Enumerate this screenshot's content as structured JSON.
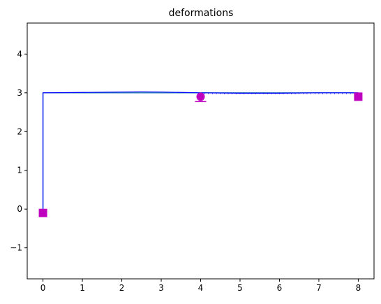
{
  "chart_data": {
    "type": "line",
    "title": "deformations",
    "xlabel": "",
    "ylabel": "",
    "xlim": [
      -0.4,
      8.4
    ],
    "ylim": [
      -1.8,
      4.8
    ],
    "x_ticks": [
      0,
      1,
      2,
      3,
      4,
      5,
      6,
      7,
      8
    ],
    "y_ticks": [
      -1,
      0,
      1,
      2,
      3,
      4
    ],
    "grid": false,
    "legend": "none",
    "series": [
      {
        "kind": "undeformed",
        "color": "#1f77b4",
        "x": [
          0,
          0,
          8
        ],
        "y": [
          0,
          3,
          3
        ]
      },
      {
        "kind": "deformed",
        "color": "#0000ff",
        "x": [
          0,
          0,
          1,
          2,
          2.5,
          3,
          4,
          5,
          6,
          7,
          8
        ],
        "y": [
          0,
          3,
          3.01,
          3.02,
          3.025,
          3.02,
          3.0,
          2.99,
          2.99,
          3.0,
          3.0
        ]
      }
    ],
    "supports": [
      {
        "type": "fixed",
        "marker": "square",
        "x": 0,
        "y": -0.1
      },
      {
        "type": "roller",
        "marker": "circle-on-line",
        "x": 4,
        "y": 2.9
      },
      {
        "type": "pinned",
        "marker": "square",
        "x": 8,
        "y": 2.9
      }
    ],
    "support_color": "#bf00bf"
  }
}
